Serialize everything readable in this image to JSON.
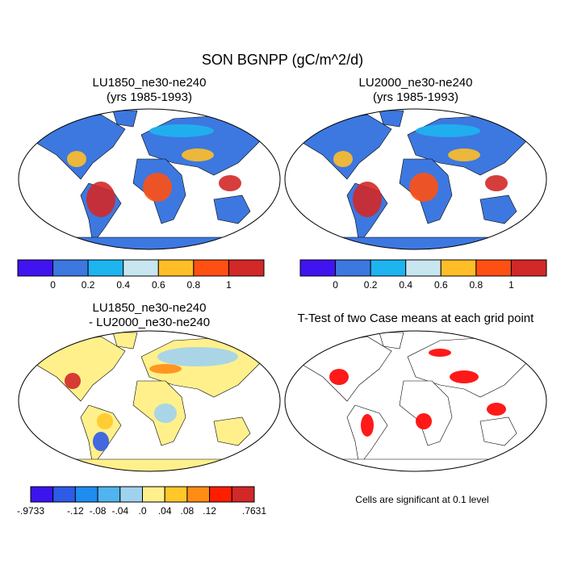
{
  "title": "SON BGNPP (gC/m^2/d)",
  "panels": [
    {
      "title": "LU1850_ne30-ne240",
      "subtitle": "(yrs 1985-1993)"
    },
    {
      "title": "LU2000_ne30-ne240",
      "subtitle": "(yrs 1985-1993)"
    },
    {
      "title": "LU1850_ne30-ne240",
      "subtitle": "- LU2000_ne30-ne240"
    },
    {
      "title": "T-Test of two Case means at each grid point",
      "note": "Cells are significant at 0.1 level"
    }
  ],
  "colorbars": [
    {
      "colors": [
        "#4014f0",
        "#3c78e0",
        "#1eb4f0",
        "#c8e6f0",
        "#ffbe28",
        "#ff5014",
        "#d22828"
      ],
      "ticks": [
        0,
        0.2,
        0.4,
        0.6,
        0.8,
        1
      ]
    },
    {
      "colors": [
        "#4014f0",
        "#3c78e0",
        "#1eb4f0",
        "#c8e6f0",
        "#ffbe28",
        "#ff5014",
        "#d22828"
      ],
      "ticks": [
        0,
        0.2,
        0.4,
        0.6,
        0.8,
        1
      ]
    },
    {
      "colors": [
        "#3c14f0",
        "#2d5ae6",
        "#1e8cf0",
        "#50b4f0",
        "#a0d2f0",
        "#fff08c",
        "#ffc828",
        "#ff8c14",
        "#ff1e00",
        "#d22828"
      ],
      "end_labels": true,
      "ticks": [
        {
          "value": -0.9733,
          "label": "-.9733"
        },
        {
          "value": -0.12,
          "label": "-.12"
        },
        {
          "value": -0.08,
          "label": "-.08"
        },
        {
          "value": -0.04,
          "label": "-.04"
        },
        {
          "value": 0,
          "label": ".0"
        },
        {
          "value": 0.04,
          "label": ".04"
        },
        {
          "value": 0.08,
          "label": ".08"
        },
        {
          "value": 0.12,
          "label": ".12"
        },
        {
          "value": 0.7631,
          "label": ".7631"
        }
      ]
    }
  ]
}
